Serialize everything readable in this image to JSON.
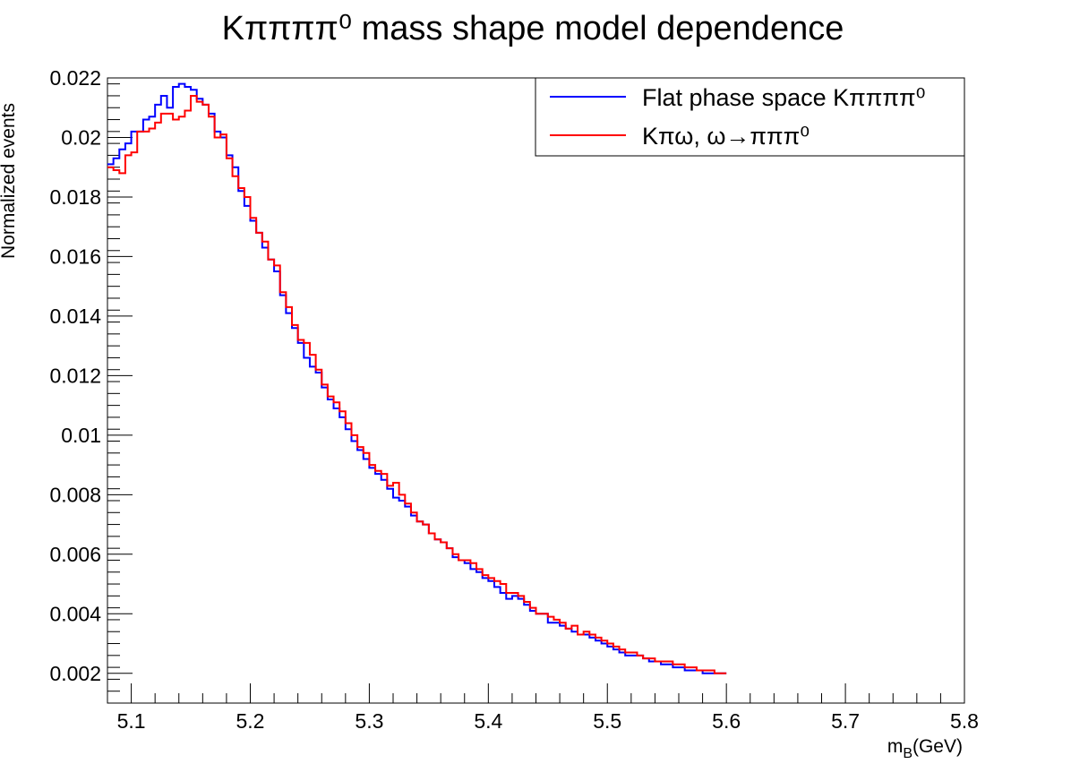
{
  "chart_data": {
    "type": "line",
    "title": "Kππππ⁰ mass shape model dependence",
    "xlabel": "m_B(GeV)",
    "ylabel": "Normalized events",
    "xlim": [
      5.08,
      5.8
    ],
    "ylim": [
      0.001,
      0.022
    ],
    "x_ticks": [
      5.1,
      5.2,
      5.3,
      5.4,
      5.5,
      5.6,
      5.7,
      5.8
    ],
    "x_tick_labels": [
      "5.1",
      "5.2",
      "5.3",
      "5.4",
      "5.5",
      "5.6",
      "5.7",
      "5.8"
    ],
    "y_ticks": [
      0.002,
      0.004,
      0.006,
      0.008,
      0.01,
      0.012,
      0.014,
      0.016,
      0.018,
      0.02,
      0.022
    ],
    "y_tick_labels": [
      "0.002",
      "0.004",
      "0.006",
      "0.008",
      "0.01",
      "0.012",
      "0.014",
      "0.016",
      "0.018",
      "0.02",
      "0.022"
    ],
    "grid": false,
    "legend_position": "top-right",
    "bin_width": 0.005,
    "series": [
      {
        "name": "Flat phase space Kππππ⁰",
        "color": "#0000ff",
        "values": [
          0.0191,
          0.0193,
          0.0196,
          0.0198,
          0.0202,
          0.0202,
          0.0206,
          0.0207,
          0.0211,
          0.0214,
          0.021,
          0.0217,
          0.0218,
          0.0217,
          0.0216,
          0.0213,
          0.0211,
          0.0208,
          0.0202,
          0.02,
          0.0194,
          0.019,
          0.0182,
          0.0177,
          0.0172,
          0.0168,
          0.0163,
          0.0159,
          0.0155,
          0.0147,
          0.0141,
          0.0136,
          0.0131,
          0.0126,
          0.0123,
          0.0121,
          0.0116,
          0.0112,
          0.0109,
          0.0106,
          0.0102,
          0.0098,
          0.0095,
          0.0092,
          0.0089,
          0.0087,
          0.0085,
          0.0082,
          0.0079,
          0.0078,
          0.0076,
          0.0073,
          0.0071,
          0.007,
          0.0067,
          0.0065,
          0.0064,
          0.0062,
          0.0059,
          0.0058,
          0.0057,
          0.0055,
          0.0054,
          0.0052,
          0.0051,
          0.0049,
          0.0047,
          0.0045,
          0.0046,
          0.0045,
          0.0043,
          0.0041,
          0.004,
          0.004,
          0.0037,
          0.0037,
          0.0036,
          0.0035,
          0.0034,
          0.0033,
          0.0033,
          0.0032,
          0.0031,
          0.003,
          0.0029,
          0.0028,
          0.0027,
          0.0026,
          0.0026,
          0.0026,
          0.0025,
          0.0024,
          0.0024,
          0.0023,
          0.0023,
          0.0022,
          0.0022,
          0.0021,
          0.0021,
          0.0021,
          0.002,
          0.002,
          0.002,
          0.002
        ]
      },
      {
        "name": "Kπω, ω→πππ⁰",
        "color": "#ff0000",
        "values": [
          0.019,
          0.0189,
          0.0188,
          0.0194,
          0.0195,
          0.0202,
          0.0202,
          0.0203,
          0.0205,
          0.0208,
          0.0208,
          0.0206,
          0.0207,
          0.0209,
          0.0214,
          0.0212,
          0.0211,
          0.0207,
          0.02,
          0.0201,
          0.0193,
          0.0187,
          0.0183,
          0.018,
          0.0173,
          0.0168,
          0.0165,
          0.0159,
          0.0157,
          0.0148,
          0.0143,
          0.0137,
          0.0132,
          0.0131,
          0.0127,
          0.0122,
          0.0117,
          0.0113,
          0.0111,
          0.0108,
          0.0104,
          0.01,
          0.0096,
          0.0094,
          0.009,
          0.0088,
          0.0087,
          0.0083,
          0.0084,
          0.008,
          0.0077,
          0.0074,
          0.0071,
          0.007,
          0.0067,
          0.0065,
          0.0064,
          0.0062,
          0.006,
          0.0058,
          0.0058,
          0.0057,
          0.0055,
          0.0053,
          0.0052,
          0.0051,
          0.005,
          0.0047,
          0.0047,
          0.0046,
          0.0044,
          0.0042,
          0.004,
          0.004,
          0.0039,
          0.0038,
          0.0037,
          0.0035,
          0.0036,
          0.0033,
          0.0034,
          0.0033,
          0.0032,
          0.0031,
          0.003,
          0.0029,
          0.0028,
          0.0027,
          0.0027,
          0.0026,
          0.0025,
          0.0025,
          0.0024,
          0.0024,
          0.0024,
          0.0023,
          0.0023,
          0.0022,
          0.0022,
          0.0021,
          0.0021,
          0.0021,
          0.002,
          0.002
        ]
      }
    ]
  }
}
